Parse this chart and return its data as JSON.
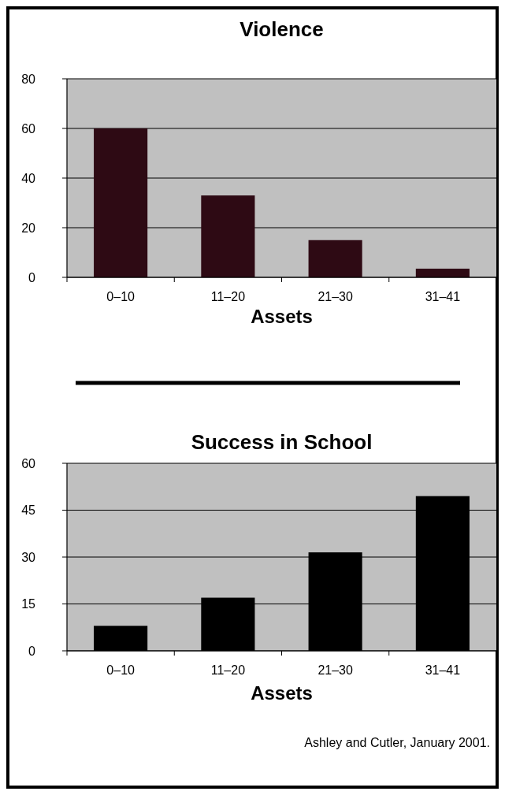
{
  "chart_data": [
    {
      "type": "bar",
      "title": "Violence",
      "xlabel": "Assets",
      "categories": [
        "0–10",
        "11–20",
        "21–30",
        "31–41"
      ],
      "values": [
        60,
        33,
        15,
        3.5
      ],
      "color": "#2e0a14",
      "ylim": [
        0,
        80
      ],
      "yticks": [
        0,
        20,
        40,
        60,
        80
      ],
      "grid": "y"
    },
    {
      "type": "bar",
      "title": "Success in School",
      "xlabel": "Assets",
      "categories": [
        "0–10",
        "11–20",
        "21–30",
        "31–41"
      ],
      "values": [
        8,
        17,
        31.5,
        49.5
      ],
      "color": "#000000",
      "ylim": [
        0,
        60
      ],
      "yticks": [
        0,
        15,
        30,
        45,
        60
      ],
      "grid": "y",
      "annotations": [
        "Ashley and Cutler, January 2001."
      ]
    }
  ]
}
